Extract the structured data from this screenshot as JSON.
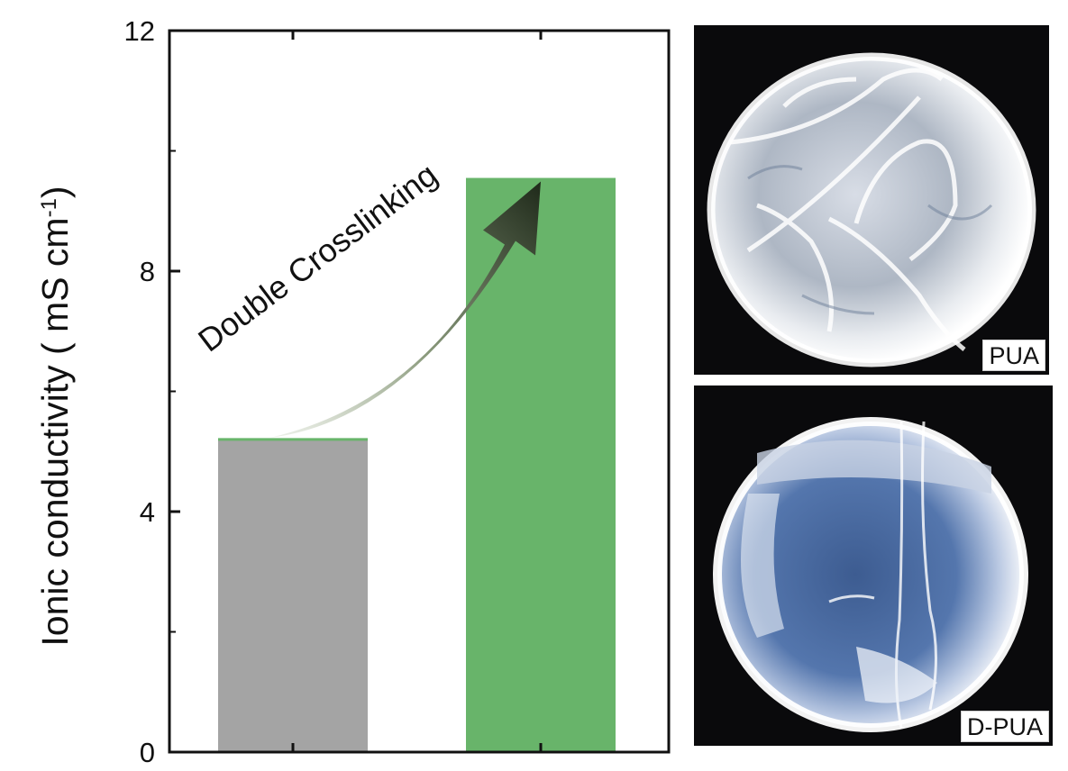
{
  "chart_data": {
    "type": "bar",
    "categories": [
      "PUA",
      "D-PUA"
    ],
    "values": [
      5.2,
      9.55
    ],
    "colors": [
      "#a4a4a4",
      "#68b46a"
    ],
    "title": "",
    "xlabel": "",
    "ylabel": "Ionic conductivity ( mS cm",
    "ylabel_superscript": "-1",
    "ylabel_close": ")",
    "ylim": [
      0,
      12
    ],
    "yticks": [
      0,
      4,
      8,
      12
    ],
    "grid": false,
    "legend": "none",
    "annotation": "Double Crosslinking"
  },
  "photos": {
    "top_label": "PUA",
    "bottom_label": "D-PUA"
  }
}
